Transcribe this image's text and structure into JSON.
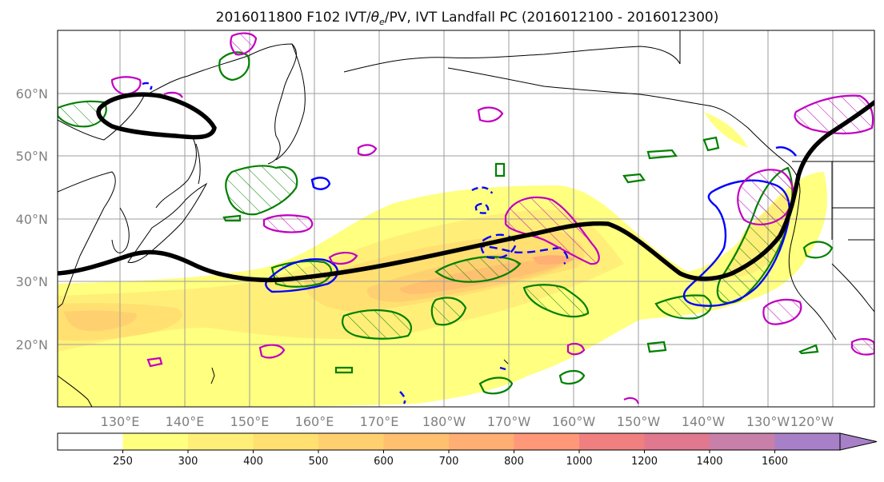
{
  "title": {
    "text": "2016011800 F102 IVT/θe/PV, IVT Landfall PC (2016012100 - 2016012300)",
    "prefix": "2016011800 F102 IVT/",
    "theta": "θ",
    "sub": "e",
    "suffix": "/PV, IVT Landfall PC (2016012100 - 2016012300)"
  },
  "map": {
    "lat_labels": [
      "20°N",
      "30°N",
      "40°N",
      "50°N",
      "60°N"
    ],
    "lon_labels": [
      "130°E",
      "140°E",
      "150°E",
      "160°E",
      "170°E",
      "180°W",
      "170°W",
      "160°W",
      "150°W",
      "140°W",
      "130°W",
      "120°W"
    ],
    "colors": {
      "ocean_bg": "#ffffff",
      "coast": "#000000",
      "grid": "#9e9e9e",
      "thick_line": "#000000",
      "pv_contour": "#008000",
      "theta_contour_blue": "#0000ff",
      "magenta_contour": "#c000c0"
    }
  },
  "colorbar": {
    "ticks": [
      "250",
      "300",
      "400",
      "500",
      "600",
      "700",
      "800",
      "1000",
      "1200",
      "1400",
      "1600"
    ],
    "colors": [
      "#ffff80",
      "#ffef78",
      "#ffe070",
      "#ffd070",
      "#ffc070",
      "#ffae74",
      "#ff9878",
      "#f08080",
      "#e07890",
      "#c880a8",
      "#a880c8"
    ]
  }
}
